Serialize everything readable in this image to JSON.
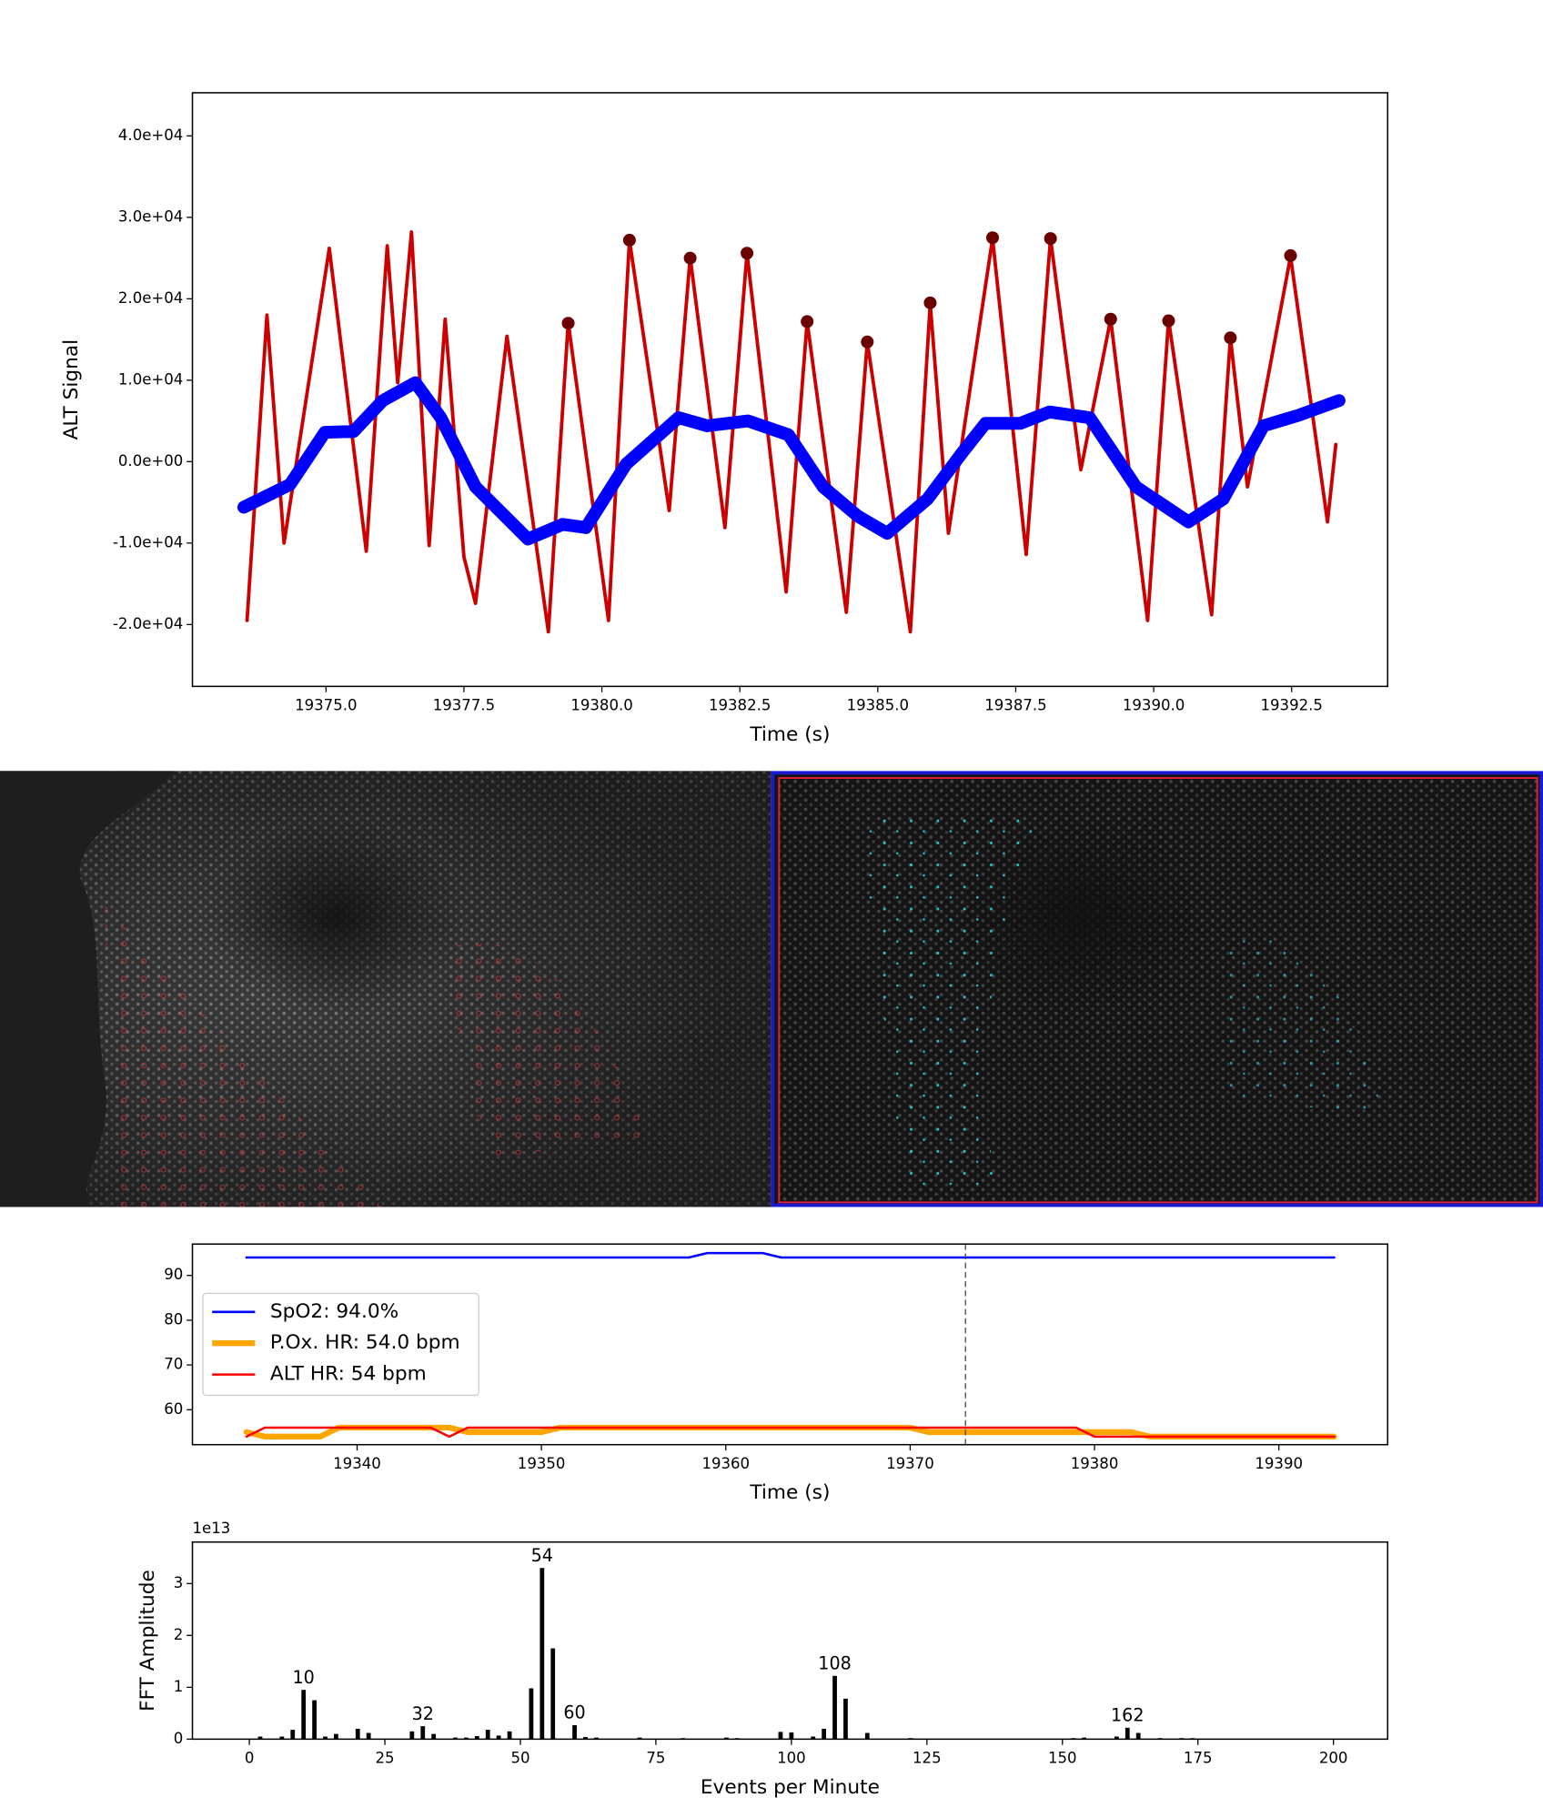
{
  "chart_data": [
    {
      "type": "line",
      "xlabel": "Time (s)",
      "ylabel": "ALT Signal",
      "xlim": [
        19372.58,
        19394.24
      ],
      "ylim": [
        -27600,
        45300
      ],
      "xticks": [
        {
          "value": 19375,
          "label": "19375.0"
        },
        {
          "value": 19377.5,
          "label": "19377.5"
        },
        {
          "value": 19380,
          "label": "19380.0"
        },
        {
          "value": 19382.5,
          "label": "19382.5"
        },
        {
          "value": 19385,
          "label": "19385.0"
        },
        {
          "value": 19387.5,
          "label": "19387.5"
        },
        {
          "value": 19390,
          "label": "19390.0"
        },
        {
          "value": 19392.5,
          "label": "19392.5"
        }
      ],
      "yticks": [
        {
          "value": -20000,
          "label": "-2.0e+04"
        },
        {
          "value": -10000,
          "label": "-1.0e+04"
        },
        {
          "value": 0,
          "label": "0.0e+00"
        },
        {
          "value": 10000,
          "label": "1.0e+04"
        },
        {
          "value": 20000,
          "label": "2.0e+04"
        },
        {
          "value": 30000,
          "label": "3.0e+04"
        },
        {
          "value": 40000,
          "label": "4.0e+04"
        }
      ],
      "series": [
        {
          "color": "#cc0000",
          "linewidth": 3,
          "x": [
            19373.57,
            19373.93,
            19374.24,
            19375.06,
            19375.73,
            19376.11,
            19376.3,
            19376.55,
            19376.87,
            19377.16,
            19377.5,
            19377.71,
            19378.28,
            19379.03,
            19379.39,
            19380.12,
            19380.5,
            19381.22,
            19381.6,
            19382.23,
            19382.63,
            19383.34,
            19383.72,
            19384.43,
            19384.81,
            19385.59,
            19385.95,
            19386.28,
            19387.08,
            19387.69,
            19388.13,
            19388.68,
            19389.22,
            19389.89,
            19390.27,
            19391.05,
            19391.39,
            19391.7,
            19392.48,
            19393.15,
            19393.3
          ],
          "values": [
            -19500,
            18000,
            -10000,
            26200,
            -11000,
            26500,
            9700,
            28200,
            -10300,
            17500,
            -11700,
            -17400,
            15400,
            -20900,
            17100,
            -19500,
            27200,
            -6000,
            25100,
            -8100,
            25600,
            -16000,
            17200,
            -18500,
            14700,
            -20900,
            19400,
            -8800,
            27400,
            -11400,
            27400,
            -1000,
            17500,
            -19500,
            17400,
            -18800,
            15200,
            -3100,
            25200,
            -7400,
            2100
          ]
        },
        {
          "color": "#0000ff",
          "linewidth": 11,
          "x": [
            19373.51,
            19374.35,
            19374.98,
            19375.5,
            19376.03,
            19376.62,
            19377.08,
            19377.71,
            19378.66,
            19379.29,
            19379.71,
            19380.44,
            19381.39,
            19381.91,
            19382.65,
            19383.38,
            19384.01,
            19384.64,
            19385.17,
            19385.9,
            19386.53,
            19386.95,
            19387.58,
            19388.11,
            19388.84,
            19389.68,
            19390.63,
            19391.26,
            19391.99,
            19392.63,
            19393.36
          ],
          "values": [
            -5600,
            -2800,
            3600,
            3700,
            7500,
            9700,
            5400,
            -3100,
            -9500,
            -7700,
            -8100,
            -300,
            5400,
            4400,
            5000,
            3300,
            -3100,
            -6700,
            -8800,
            -4600,
            1100,
            4700,
            4700,
            6100,
            5400,
            -3100,
            -7400,
            -4600,
            4400,
            5700,
            7500
          ]
        }
      ],
      "markers": {
        "color": "#6b0000",
        "x": [
          19379.39,
          19380.5,
          19381.6,
          19382.63,
          19383.72,
          19384.81,
          19385.95,
          19387.08,
          19388.13,
          19389.22,
          19390.27,
          19391.39,
          19392.48
        ],
        "values": [
          17000,
          27200,
          25000,
          25600,
          17200,
          14700,
          19500,
          27500,
          27400,
          17500,
          17300,
          15200,
          25300
        ]
      }
    },
    {
      "type": "line",
      "xlabel": "Time (s)",
      "xlim": [
        19331.07,
        19395.9
      ],
      "ylim": [
        52.2,
        97
      ],
      "xticks": [
        19340,
        19350,
        19360,
        19370,
        19380,
        19390
      ],
      "yticks": [
        60,
        70,
        80,
        90
      ],
      "vline": 19373,
      "legend": "center left",
      "series": [
        {
          "name": "SpO2: 94.0%",
          "color": "#0000ff",
          "linewidth": 2,
          "x": [
            19334,
            19358,
            19359,
            19362,
            19363,
            19393
          ],
          "values": [
            94,
            94,
            95,
            95,
            94,
            94
          ]
        },
        {
          "name": "P.Ox. HR: 54.0 bpm",
          "color": "#ffa500",
          "linewidth": 5,
          "x": [
            19334,
            19335,
            19338,
            19339,
            19345,
            19346,
            19350,
            19351,
            19370,
            19371,
            19382,
            19383,
            19393
          ],
          "values": [
            55,
            54,
            54,
            56,
            56,
            55,
            55,
            56,
            56,
            55,
            55,
            54,
            54
          ]
        },
        {
          "name": "ALT HR: 54 bpm",
          "color": "#ff0000",
          "linewidth": 2,
          "x": [
            19334,
            19335,
            19344,
            19345,
            19346,
            19379,
            19380,
            19393
          ],
          "values": [
            54,
            56,
            56,
            54,
            56,
            56,
            54,
            54
          ]
        }
      ]
    },
    {
      "type": "bar",
      "xlabel": "Events per Minute",
      "ylabel": "FFT Amplitude",
      "offset_label": "1e13",
      "xlim": [
        -10.5,
        210
      ],
      "ylim": [
        0,
        3.8
      ],
      "xticks": [
        0,
        25,
        50,
        75,
        100,
        125,
        150,
        175,
        200
      ],
      "yticks": [
        0,
        1,
        2,
        3
      ],
      "color": "#000000",
      "x": [
        2,
        6,
        8,
        10,
        12,
        14,
        16,
        20,
        22,
        30,
        32,
        34,
        38,
        40,
        42,
        44,
        46,
        48,
        52,
        54,
        56,
        60,
        62,
        64,
        72,
        80,
        88,
        90,
        98,
        100,
        104,
        106,
        108,
        110,
        114,
        122,
        152,
        154,
        160,
        162,
        164,
        168,
        172,
        174
      ],
      "values": [
        0.05,
        0.05,
        0.18,
        0.95,
        0.75,
        0.05,
        0.1,
        0.2,
        0.12,
        0.15,
        0.25,
        0.1,
        0.03,
        0.03,
        0.06,
        0.18,
        0.07,
        0.15,
        0.98,
        3.3,
        1.75,
        0.27,
        0.04,
        0.03,
        0.03,
        0.02,
        0.03,
        0.02,
        0.14,
        0.13,
        0.05,
        0.2,
        1.22,
        0.78,
        0.12,
        0.02,
        0.02,
        0.03,
        0.05,
        0.22,
        0.12,
        0.02,
        0.02,
        0.02
      ],
      "peak_labels": [
        10,
        32,
        54,
        60,
        108,
        162
      ]
    }
  ]
}
